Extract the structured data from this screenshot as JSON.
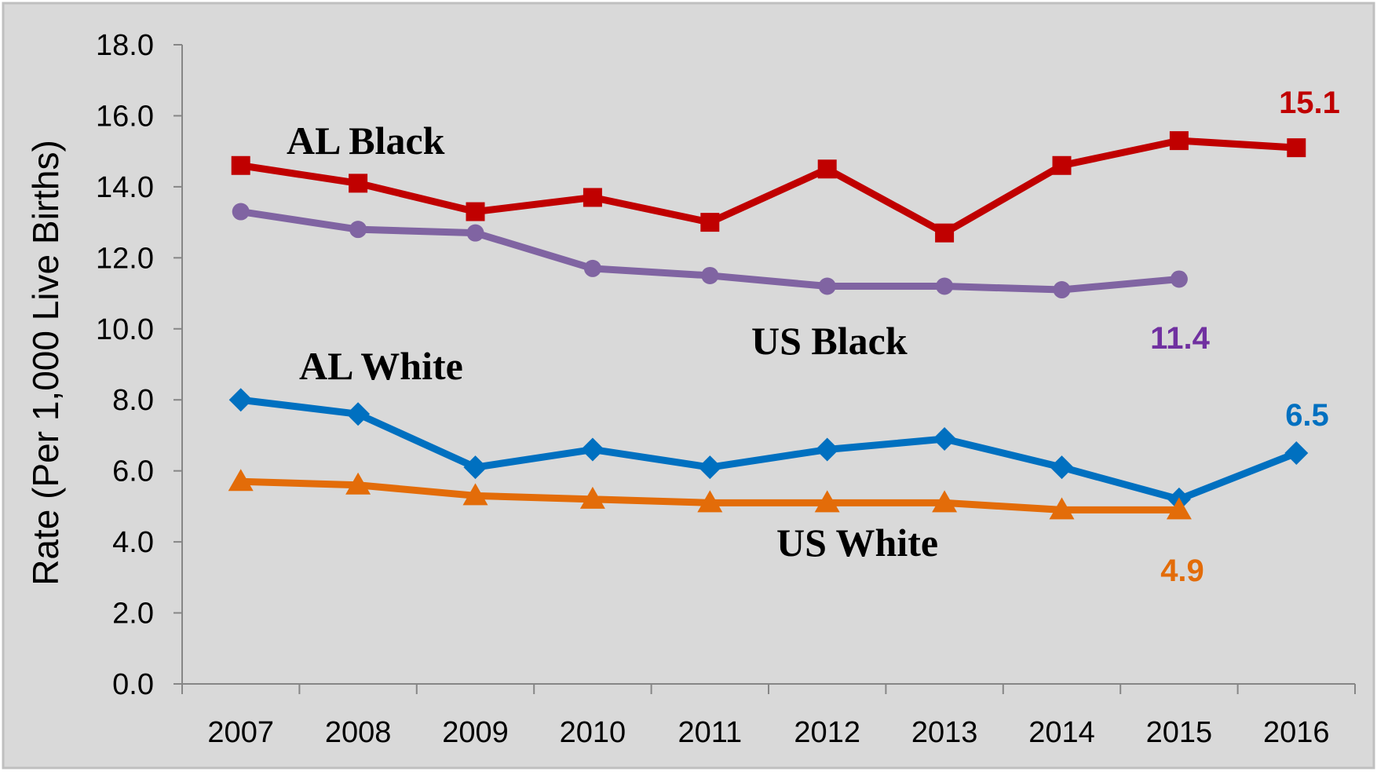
{
  "chart_data": {
    "type": "line",
    "ylabel": "Rate (Per 1,000 Live Births)",
    "xlabel": "",
    "ylim": [
      0,
      18
    ],
    "y_ticks": [
      "0.0",
      "2.0",
      "4.0",
      "6.0",
      "8.0",
      "10.0",
      "12.0",
      "14.0",
      "16.0",
      "18.0"
    ],
    "categories": [
      "2007",
      "2008",
      "2009",
      "2010",
      "2011",
      "2012",
      "2013",
      "2014",
      "2015",
      "2016"
    ],
    "grid": false,
    "series": [
      {
        "name": "AL Black",
        "color": "#C00000",
        "marker": "square",
        "values": [
          14.6,
          14.1,
          13.3,
          13.7,
          13.0,
          14.5,
          12.7,
          14.6,
          15.3,
          15.1
        ],
        "end_label": "15.1"
      },
      {
        "name": "US Black",
        "color": "#8064A2",
        "marker": "circle",
        "values": [
          13.3,
          12.8,
          12.7,
          11.7,
          11.5,
          11.2,
          11.2,
          11.1,
          11.4,
          null
        ],
        "end_label": "11.4"
      },
      {
        "name": "AL White",
        "color": "#0070C0",
        "marker": "diamond",
        "values": [
          8.0,
          7.6,
          6.1,
          6.6,
          6.1,
          6.6,
          6.9,
          6.1,
          5.2,
          6.5
        ],
        "end_label": "6.5"
      },
      {
        "name": "US White",
        "color": "#E36C09",
        "marker": "triangle",
        "values": [
          5.7,
          5.6,
          5.3,
          5.2,
          5.1,
          5.1,
          5.1,
          4.9,
          4.9,
          null
        ],
        "end_label": "4.9"
      }
    ],
    "end_label_colors": {
      "AL Black": "#C00000",
      "US Black": "#7030A0",
      "AL White": "#0070C0",
      "US White": "#E36C09"
    }
  }
}
